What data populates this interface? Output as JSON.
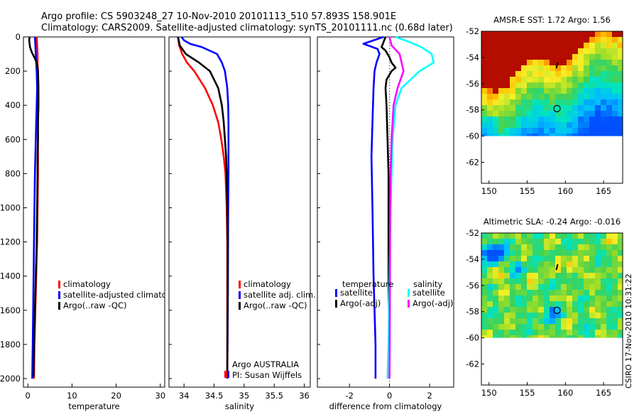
{
  "title_line1": "Argo profile: CS 5903248_27 10-Nov-2010 20101113_510 57.893S 158.901E",
  "title_line2": "Climatology: CARS2009. Satellite-adjusted climatology: synTS_20101111.nc (0.68d later)",
  "credit": "CSIRO 17-Nov-2010 10:31:22",
  "colors": {
    "climatology": "#ff0000",
    "satellite": "#0000ff",
    "argo": "#000000",
    "satellite_sal_diff": "#00ffff",
    "argo_sal_diff": "#ff00ff"
  },
  "depth_ticks": [
    "0",
    "200",
    "400",
    "600",
    "800",
    "1000",
    "1200",
    "1400",
    "1600",
    "1800",
    "2000"
  ],
  "chart_data": [
    {
      "type": "line",
      "xlabel": "temperature",
      "xlim": [
        -1,
        31
      ],
      "ylim": [
        2050,
        0
      ],
      "yticks": [
        0,
        200,
        400,
        600,
        800,
        1000,
        1200,
        1400,
        1600,
        1800,
        2000
      ],
      "xticks": [
        0,
        10,
        20,
        30
      ],
      "xtick_labels": [
        "0",
        "10",
        "20",
        "30"
      ],
      "legend": [
        "climatology",
        "satellite-adjusted climatology",
        "Argo(..raw -QC)"
      ],
      "series": [
        {
          "name": "climatology",
          "color": "#ff0000",
          "depth": [
            0,
            50,
            100,
            150,
            200,
            300,
            400,
            500,
            600,
            700,
            800,
            1000,
            1200,
            1400,
            1600,
            1800,
            2000
          ],
          "values": [
            2.0,
            2.1,
            2.2,
            2.2,
            2.3,
            2.4,
            2.4,
            2.3,
            2.3,
            2.3,
            2.3,
            2.2,
            2.1,
            1.9,
            1.7,
            1.5,
            1.4
          ]
        },
        {
          "name": "satellite-adjusted climatology",
          "color": "#0000ff",
          "depth": [
            0,
            50,
            100,
            150,
            200,
            300,
            400,
            500,
            600,
            700,
            800,
            1000,
            1200,
            1400,
            1600,
            1800,
            2000
          ],
          "values": [
            1.6,
            1.7,
            1.8,
            1.9,
            2.0,
            2.1,
            2.0,
            1.9,
            1.8,
            1.7,
            1.6,
            1.5,
            1.4,
            1.3,
            1.2,
            1.1,
            1.0
          ]
        },
        {
          "name": "Argo(..raw -QC)",
          "color": "#000000",
          "depth": [
            0,
            20,
            60,
            90,
            120,
            150,
            200,
            300,
            400,
            500,
            600,
            700,
            800,
            1000,
            1200,
            1400,
            1600,
            1800,
            1990
          ],
          "values": [
            0.4,
            0.3,
            0.5,
            0.9,
            1.5,
            2.0,
            2.3,
            2.4,
            2.4,
            2.3,
            2.3,
            2.2,
            2.2,
            2.1,
            2.0,
            1.8,
            1.6,
            1.4,
            1.3
          ]
        }
      ]
    },
    {
      "type": "line",
      "xlabel": "salinity",
      "xlim": [
        33.75,
        36.1
      ],
      "ylim": [
        2050,
        0
      ],
      "xticks": [
        34,
        34.5,
        35,
        35.5,
        36
      ],
      "xtick_labels": [
        "34",
        "34.5",
        "35",
        "35.5",
        "36"
      ],
      "legend": [
        "climatology",
        "satellite adj. clim.",
        "Argo(..raw -QC)"
      ],
      "annotation": [
        "Argo AUSTRALIA",
        "PI: Susan Wijffels"
      ],
      "series": [
        {
          "name": "climatology",
          "color": "#ff0000",
          "depth": [
            0,
            50,
            100,
            150,
            200,
            300,
            400,
            500,
            600,
            700,
            800,
            1000,
            1200,
            1500,
            2000
          ],
          "values": [
            33.9,
            33.92,
            33.97,
            34.05,
            34.17,
            34.35,
            34.48,
            34.57,
            34.62,
            34.66,
            34.69,
            34.71,
            34.72,
            34.72,
            34.72
          ]
        },
        {
          "name": "satellite adj. clim.",
          "color": "#0000ff",
          "depth": [
            0,
            20,
            40,
            60,
            100,
            150,
            200,
            300,
            400,
            500,
            600,
            800,
            1000,
            1500,
            2000
          ],
          "values": [
            33.96,
            34.0,
            34.1,
            34.3,
            34.55,
            34.63,
            34.68,
            34.72,
            34.735,
            34.74,
            34.74,
            34.74,
            34.735,
            34.73,
            34.72
          ]
        },
        {
          "name": "Argo(..raw -QC)",
          "color": "#000000",
          "depth": [
            0,
            50,
            100,
            150,
            200,
            300,
            400,
            500,
            600,
            700,
            800,
            1000,
            1200,
            1500,
            1990
          ],
          "values": [
            33.9,
            33.93,
            34.03,
            34.25,
            34.43,
            34.57,
            34.63,
            34.66,
            34.68,
            34.7,
            34.71,
            34.72,
            34.725,
            34.725,
            34.72
          ]
        }
      ]
    },
    {
      "type": "line",
      "xlabel": "difference from climatology",
      "xlim": [
        -3.6,
        3.2
      ],
      "ylim": [
        2050,
        0
      ],
      "xticks": [
        -2,
        0,
        2
      ],
      "xtick_labels": [
        "-2",
        "0",
        "2"
      ],
      "legend_groups": [
        {
          "title": "temperature",
          "items": [
            "satellite",
            "Argo(-adj)"
          ]
        },
        {
          "title": "salinity",
          "items": [
            "satellite",
            "Argo(-adj)"
          ]
        }
      ],
      "series": [
        {
          "name": "temperature satellite",
          "color": "#0000ff",
          "depth": [
            0,
            40,
            70,
            100,
            150,
            200,
            300,
            500,
            700,
            1000,
            1400,
            1800,
            2000
          ],
          "values": [
            -0.3,
            -1.3,
            -0.6,
            -0.5,
            -0.65,
            -0.75,
            -0.8,
            -0.85,
            -0.9,
            -0.85,
            -0.8,
            -0.7,
            -0.7
          ]
        },
        {
          "name": "temperature Argo(-adj)",
          "color": "#000000",
          "depth": [
            0,
            30,
            60,
            80,
            120,
            150,
            180,
            200,
            250,
            300,
            400,
            600,
            800,
            1000,
            1400,
            1800,
            2000
          ],
          "values": [
            -0.2,
            -0.3,
            -0.4,
            -0.2,
            0.0,
            0.1,
            0.3,
            0.1,
            -0.15,
            -0.2,
            -0.15,
            -0.1,
            -0.05,
            -0.05,
            -0.05,
            0.0,
            0.0
          ]
        },
        {
          "name": "salinity satellite",
          "color": "#00ffff",
          "depth": [
            0,
            30,
            60,
            100,
            150,
            200,
            300,
            400,
            600,
            800,
            1000,
            1400,
            1800,
            2000
          ],
          "values": [
            0.3,
            1.0,
            1.6,
            2.1,
            2.2,
            1.5,
            0.6,
            0.3,
            0.15,
            0.1,
            0.05,
            0.0,
            -0.05,
            -0.1
          ]
        },
        {
          "name": "salinity Argo(-adj)",
          "color": "#ff00ff",
          "depth": [
            0,
            50,
            100,
            200,
            300,
            400,
            600,
            800,
            1000,
            1400,
            1800,
            2000
          ],
          "values": [
            0.0,
            0.1,
            0.5,
            0.7,
            0.4,
            0.2,
            0.1,
            0.05,
            0.03,
            0.02,
            0.01,
            0.0
          ]
        }
      ]
    },
    {
      "type": "heatmap",
      "title": "AMSR-E SST: 1.72 Argo: 1.56",
      "xlim": [
        149,
        167.5
      ],
      "ylim": [
        -63.6,
        -52
      ],
      "xticks": [
        150,
        155,
        160,
        165
      ],
      "yticks": [
        -52,
        -54,
        -56,
        -58,
        -60,
        -62
      ],
      "ytick_labels": [
        "-52",
        "-54",
        "-56",
        "-58",
        "-60",
        "-62"
      ],
      "data_extent_lat": [
        -60,
        -52
      ],
      "markers": [
        {
          "lon": 158.9,
          "lat": -57.9,
          "shape": "circle"
        },
        {
          "lon": 158.9,
          "lat": -54.6,
          "shape": "dash"
        }
      ]
    },
    {
      "type": "heatmap",
      "title": "Altimetric SLA: -0.24 Argo: -0.016",
      "xlim": [
        149,
        167.5
      ],
      "ylim": [
        -63.6,
        -52
      ],
      "xticks": [
        150,
        155,
        160,
        165
      ],
      "yticks": [
        -52,
        -54,
        -56,
        -58,
        -60,
        -62
      ],
      "ytick_labels": [
        "-52",
        "-54",
        "-56",
        "-58",
        "-60",
        "-62"
      ],
      "data_extent_lat": [
        -60,
        -52
      ],
      "markers": [
        {
          "lon": 158.9,
          "lat": -57.9,
          "shape": "circle"
        },
        {
          "lon": 158.9,
          "lat": -54.6,
          "shape": "dash"
        }
      ]
    }
  ]
}
